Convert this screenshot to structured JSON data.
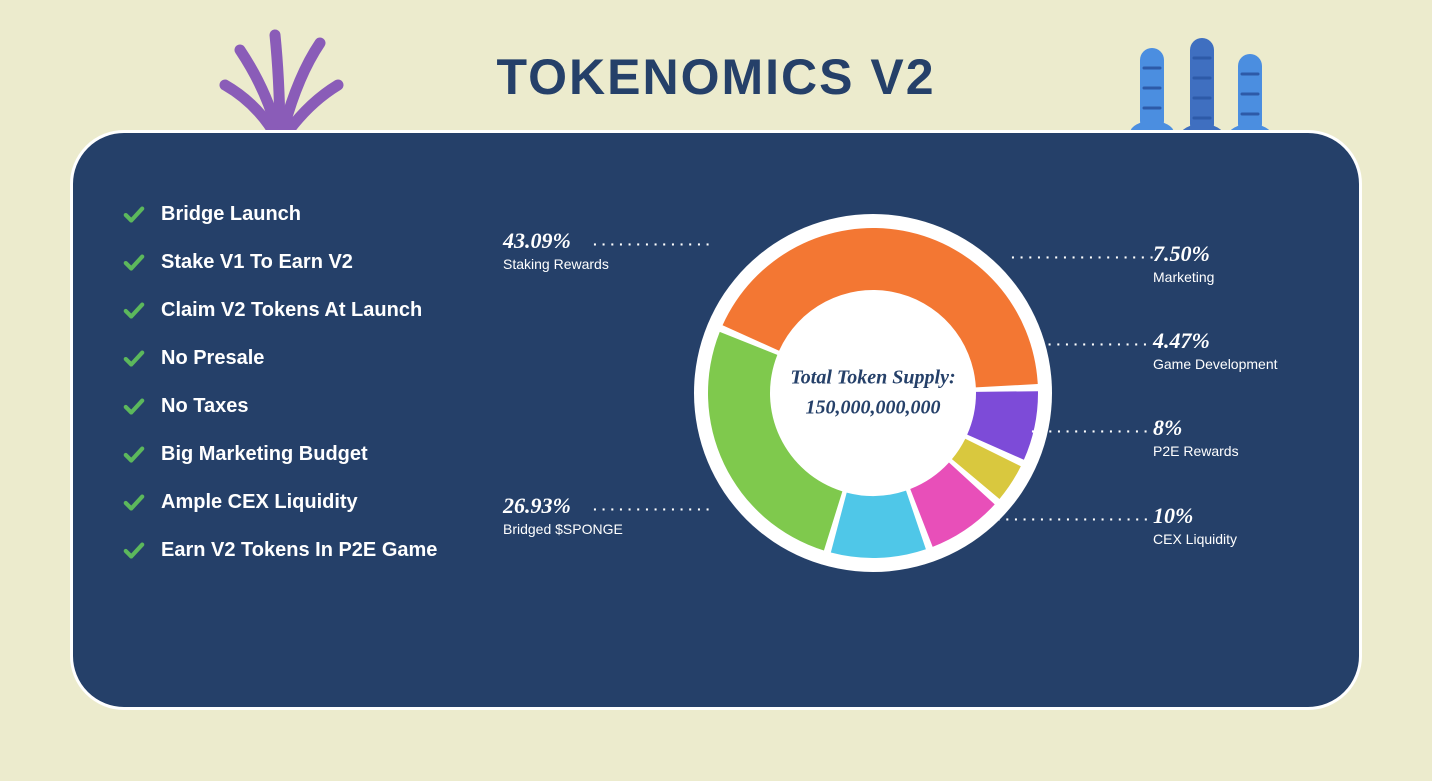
{
  "page": {
    "title": "TOKENOMICS V2",
    "background_color": "#ecebcd",
    "card_color": "#254069",
    "card_border": "#ffffff",
    "card_border_radius": 54,
    "title_color": "#254069",
    "title_fontsize": 50
  },
  "decor": {
    "coral_left_color": "#8a5cb8",
    "coral_right_colors": [
      "#4b8ee0",
      "#3f6fc0"
    ]
  },
  "features": {
    "check_color": "#5cb85c",
    "text_color": "#ffffff",
    "fontsize": 20,
    "items": [
      "Bridge Launch",
      "Stake V1 To Earn V2",
      "Claim V2 Tokens At Launch",
      "No Presale",
      "No Taxes",
      "Big Marketing Budget",
      "Ample CEX Liquidity",
      "Earn V2 Tokens In P2E Game"
    ]
  },
  "chart": {
    "type": "donut",
    "outer_ring_color": "#ffffff",
    "outer_radius": 165,
    "ring_thickness": 62,
    "gap_deg": 2.5,
    "center_background": "#ffffff",
    "center_label": "Total Token Supply:",
    "center_value": "150,000,000,000",
    "center_text_color": "#254069",
    "label_text_color": "#ffffff",
    "pct_fontsize": 22,
    "name_fontsize": 14,
    "slices": [
      {
        "label": "Staking Rewards",
        "pct_text": "43.09%",
        "value": 43.09,
        "color": "#f37733"
      },
      {
        "label": "Marketing",
        "pct_text": "7.50%",
        "value": 7.5,
        "color": "#7d4bd8"
      },
      {
        "label": "Game Development",
        "pct_text": "4.47%",
        "value": 4.47,
        "color": "#d9c83e"
      },
      {
        "label": "P2E Rewards",
        "pct_text": "8%",
        "value": 8.01,
        "color": "#e84fb9"
      },
      {
        "label": "CEX Liquidity",
        "pct_text": "10%",
        "value": 10.0,
        "color": "#4fc7e8"
      },
      {
        "label": "Bridged $SPONGE",
        "pct_text": "26.93%",
        "value": 26.93,
        "color": "#7fc94d"
      }
    ]
  }
}
